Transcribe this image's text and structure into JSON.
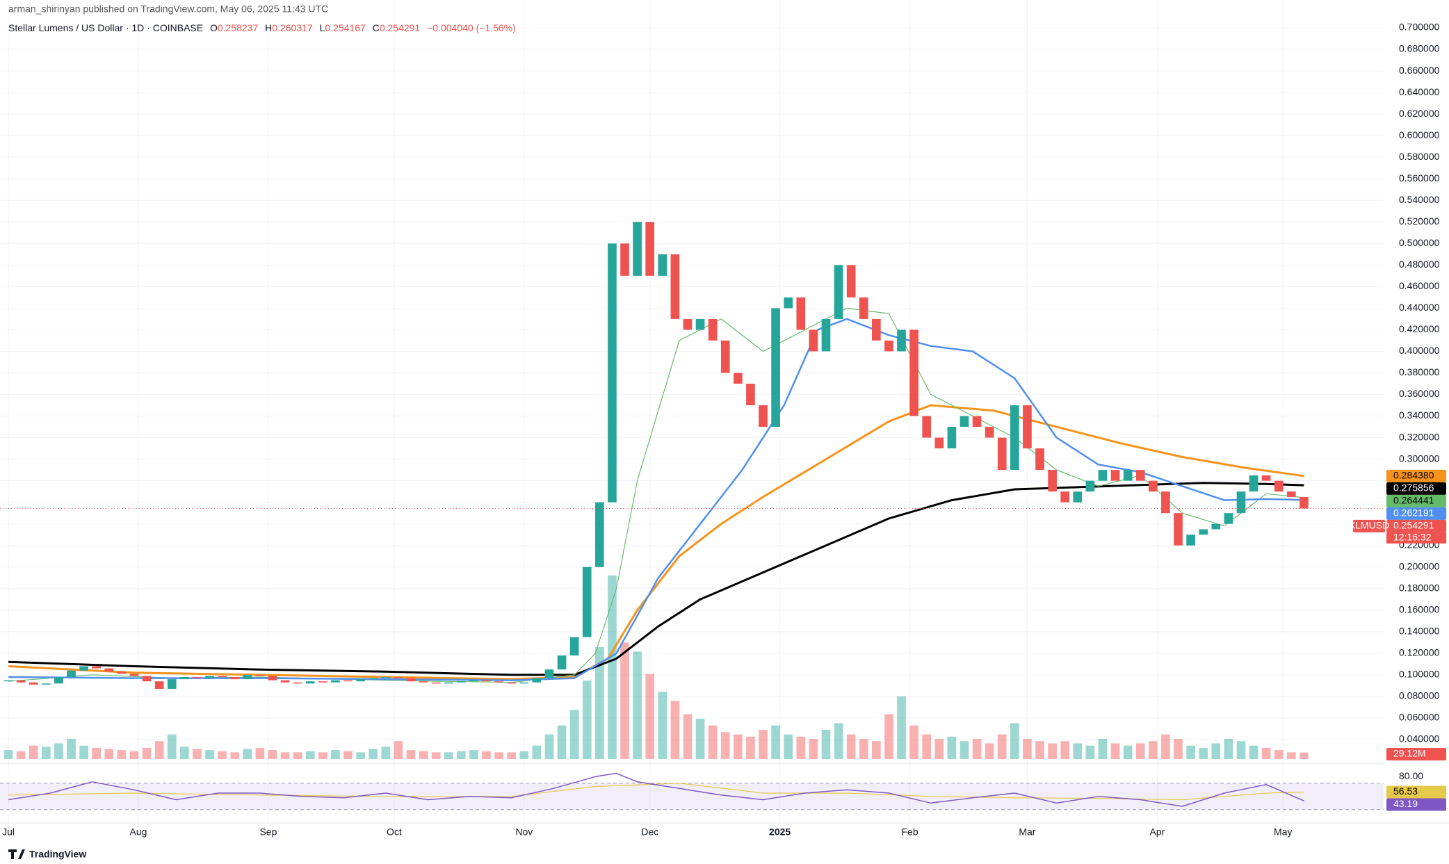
{
  "header": {
    "published": "arman_shirinyan published on TradingView.com, May 06, 2025 11:43 UTC",
    "symbol": "Stellar Lumens / US Dollar · 1D · COINBASE",
    "ohlc": [
      {
        "key": "O",
        "value": "0.258237"
      },
      {
        "key": "H",
        "value": "0.260317"
      },
      {
        "key": "L",
        "value": "0.254167"
      },
      {
        "key": "C",
        "value": "0.254291"
      }
    ],
    "change": "−0.004040 (−1.56%)"
  },
  "footer": "TradingView",
  "chart_data": {
    "type": "candlestick",
    "up_color": "#26a69a",
    "down_color": "#ef5350",
    "grid": true,
    "xlim": [
      -2,
      328
    ],
    "xticks": [
      {
        "value": 0,
        "label": "Jul"
      },
      {
        "value": 31,
        "label": "Aug"
      },
      {
        "value": 62,
        "label": "Sep"
      },
      {
        "value": 92,
        "label": "Oct"
      },
      {
        "value": 123,
        "label": "Nov"
      },
      {
        "value": 153,
        "label": "Dec"
      },
      {
        "value": 184,
        "label": "2025"
      },
      {
        "value": 215,
        "label": "Feb"
      },
      {
        "value": 243,
        "label": "Mar"
      },
      {
        "value": 274,
        "label": "Apr"
      },
      {
        "value": 304,
        "label": "May"
      }
    ],
    "ylim": [
      0.04,
      0.7
    ],
    "yticks": [
      {
        "value": 0.7,
        "label": "0.700000"
      },
      {
        "value": 0.68,
        "label": "0.680000"
      },
      {
        "value": 0.66,
        "label": "0.660000"
      },
      {
        "value": 0.64,
        "label": "0.640000"
      },
      {
        "value": 0.62,
        "label": "0.620000"
      },
      {
        "value": 0.6,
        "label": "0.600000"
      },
      {
        "value": 0.58,
        "label": "0.580000"
      },
      {
        "value": 0.56,
        "label": "0.560000"
      },
      {
        "value": 0.54,
        "label": "0.540000"
      },
      {
        "value": 0.52,
        "label": "0.520000"
      },
      {
        "value": 0.5,
        "label": "0.500000"
      },
      {
        "value": 0.48,
        "label": "0.480000"
      },
      {
        "value": 0.46,
        "label": "0.460000"
      },
      {
        "value": 0.44,
        "label": "0.440000"
      },
      {
        "value": 0.42,
        "label": "0.420000"
      },
      {
        "value": 0.4,
        "label": "0.400000"
      },
      {
        "value": 0.38,
        "label": "0.380000"
      },
      {
        "value": 0.36,
        "label": "0.360000"
      },
      {
        "value": 0.34,
        "label": "0.340000"
      },
      {
        "value": 0.32,
        "label": "0.320000"
      },
      {
        "value": 0.3,
        "label": "0.300000"
      },
      {
        "value": 0.28,
        "label": "0.280000"
      },
      {
        "value": 0.26,
        "label": "0.260000"
      },
      {
        "value": 0.24,
        "label": "0.240000"
      },
      {
        "value": 0.22,
        "label": "0.220000"
      },
      {
        "value": 0.2,
        "label": "0.200000"
      },
      {
        "value": 0.18,
        "label": "0.180000"
      },
      {
        "value": 0.16,
        "label": "0.160000"
      },
      {
        "value": 0.14,
        "label": "0.140000"
      },
      {
        "value": 0.12,
        "label": "0.120000"
      },
      {
        "value": 0.1,
        "label": "0.100000"
      },
      {
        "value": 0.08,
        "label": "0.080000"
      },
      {
        "value": 0.06,
        "label": "0.060000"
      },
      {
        "value": 0.04,
        "label": "0.040000"
      }
    ],
    "x": [
      0,
      3,
      6,
      9,
      12,
      15,
      18,
      21,
      24,
      27,
      30,
      33,
      36,
      39,
      42,
      45,
      48,
      51,
      54,
      57,
      60,
      63,
      66,
      69,
      72,
      75,
      78,
      81,
      84,
      87,
      90,
      93,
      96,
      99,
      102,
      105,
      108,
      111,
      114,
      117,
      120,
      123,
      126,
      129,
      132,
      135,
      138,
      141,
      144,
      147,
      150,
      153,
      156,
      159,
      162,
      165,
      168,
      171,
      174,
      177,
      180,
      183,
      186,
      189,
      192,
      195,
      198,
      201,
      204,
      207,
      210,
      213,
      216,
      219,
      222,
      225,
      228,
      231,
      234,
      237,
      240,
      243,
      246,
      249,
      252,
      255,
      258,
      261,
      264,
      267,
      270,
      273,
      276,
      279,
      282,
      285,
      288,
      291,
      294,
      297,
      300,
      303,
      306,
      309
    ],
    "close": [
      0.095,
      0.093,
      0.091,
      0.092,
      0.098,
      0.104,
      0.108,
      0.106,
      0.103,
      0.101,
      0.099,
      0.094,
      0.087,
      0.096,
      0.098,
      0.097,
      0.099,
      0.098,
      0.096,
      0.1,
      0.099,
      0.095,
      0.093,
      0.092,
      0.094,
      0.093,
      0.095,
      0.094,
      0.096,
      0.097,
      0.098,
      0.097,
      0.094,
      0.093,
      0.092,
      0.093,
      0.094,
      0.095,
      0.094,
      0.093,
      0.092,
      0.093,
      0.097,
      0.105,
      0.118,
      0.135,
      0.2,
      0.26,
      0.5,
      0.47,
      0.52,
      0.47,
      0.49,
      0.43,
      0.42,
      0.43,
      0.41,
      0.38,
      0.37,
      0.35,
      0.33,
      0.44,
      0.45,
      0.42,
      0.4,
      0.43,
      0.48,
      0.45,
      0.43,
      0.41,
      0.4,
      0.42,
      0.34,
      0.32,
      0.31,
      0.33,
      0.34,
      0.33,
      0.32,
      0.29,
      0.35,
      0.31,
      0.29,
      0.27,
      0.26,
      0.27,
      0.28,
      0.29,
      0.28,
      0.29,
      0.28,
      0.27,
      0.25,
      0.22,
      0.23,
      0.235,
      0.24,
      0.25,
      0.27,
      0.285,
      0.28,
      0.27,
      0.265,
      0.254291
    ],
    "last_symbol": "XLMUSD",
    "countdown": "12:16:32",
    "volume": [
      40,
      35,
      60,
      55,
      70,
      90,
      60,
      50,
      45,
      40,
      35,
      50,
      80,
      110,
      55,
      45,
      40,
      35,
      30,
      45,
      50,
      40,
      30,
      30,
      35,
      30,
      40,
      35,
      30,
      45,
      55,
      80,
      40,
      35,
      30,
      30,
      35,
      40,
      35,
      30,
      30,
      35,
      60,
      110,
      150,
      220,
      350,
      500,
      820,
      520,
      480,
      380,
      300,
      260,
      200,
      180,
      150,
      120,
      110,
      100,
      130,
      150,
      110,
      100,
      90,
      130,
      160,
      110,
      90,
      80,
      200,
      280,
      150,
      110,
      90,
      100,
      80,
      90,
      70,
      110,
      160,
      90,
      80,
      70,
      80,
      70,
      60,
      90,
      70,
      60,
      70,
      80,
      110,
      90,
      60,
      50,
      70,
      90,
      80,
      60,
      50,
      40,
      30,
      29.12
    ],
    "volume_last_label": "29.12M",
    "volume_ylim": [
      0,
      900
    ],
    "moving_averages": [
      {
        "color": "#f7931a",
        "width": 3,
        "value_label": "0.284380",
        "x": [
          0,
          30,
          60,
          90,
          120,
          135,
          143,
          150,
          160,
          170,
          180,
          195,
          210,
          220,
          235,
          250,
          265,
          280,
          295,
          309
        ],
        "values": [
          0.108,
          0.102,
          0.1,
          0.098,
          0.096,
          0.098,
          0.115,
          0.16,
          0.21,
          0.24,
          0.265,
          0.3,
          0.335,
          0.35,
          0.345,
          0.33,
          0.315,
          0.302,
          0.292,
          0.28438
        ]
      },
      {
        "color": "#000000",
        "width": 3,
        "value_label": "0.275856",
        "x": [
          0,
          30,
          60,
          90,
          120,
          135,
          145,
          155,
          165,
          180,
          195,
          210,
          225,
          240,
          255,
          270,
          285,
          300,
          309
        ],
        "values": [
          0.112,
          0.108,
          0.105,
          0.103,
          0.1,
          0.1,
          0.115,
          0.145,
          0.17,
          0.195,
          0.22,
          0.245,
          0.262,
          0.272,
          0.274,
          0.276,
          0.278,
          0.277,
          0.275856
        ]
      },
      {
        "color": "#66bb6a",
        "width": 1.2,
        "value_label": "0.264441",
        "x": [
          0,
          20,
          40,
          60,
          90,
          120,
          135,
          140,
          145,
          150,
          160,
          170,
          180,
          190,
          200,
          210,
          220,
          230,
          240,
          250,
          260,
          270,
          280,
          290,
          300,
          309
        ],
        "values": [
          0.094,
          0.1,
          0.097,
          0.098,
          0.095,
          0.093,
          0.1,
          0.12,
          0.18,
          0.28,
          0.41,
          0.43,
          0.4,
          0.42,
          0.44,
          0.435,
          0.36,
          0.34,
          0.32,
          0.29,
          0.275,
          0.285,
          0.25,
          0.238,
          0.268,
          0.264441
        ]
      },
      {
        "color": "#4f8ff0",
        "width": 2.5,
        "value_label": "0.262191",
        "x": [
          0,
          30,
          60,
          90,
          120,
          135,
          145,
          155,
          165,
          175,
          185,
          193,
          200,
          210,
          220,
          230,
          240,
          250,
          260,
          270,
          280,
          290,
          300,
          309
        ],
        "values": [
          0.098,
          0.097,
          0.097,
          0.096,
          0.095,
          0.097,
          0.12,
          0.19,
          0.24,
          0.29,
          0.35,
          0.42,
          0.43,
          0.415,
          0.405,
          0.4,
          0.375,
          0.32,
          0.295,
          0.288,
          0.275,
          0.262,
          0.263,
          0.262191
        ]
      }
    ],
    "rsi": {
      "color": "#7e57c2",
      "ylim": [
        15,
        95
      ],
      "band": [
        30,
        70
      ],
      "yticks": [
        {
          "value": 80,
          "label": "80.00"
        }
      ],
      "x": [
        0,
        10,
        20,
        30,
        40,
        50,
        60,
        70,
        80,
        90,
        100,
        110,
        120,
        130,
        140,
        145,
        150,
        160,
        170,
        180,
        190,
        200,
        210,
        220,
        230,
        240,
        250,
        260,
        270,
        280,
        290,
        300,
        309
      ],
      "values": [
        45,
        55,
        72,
        60,
        45,
        55,
        55,
        50,
        48,
        55,
        45,
        50,
        48,
        62,
        80,
        85,
        72,
        62,
        52,
        45,
        55,
        60,
        55,
        40,
        48,
        55,
        40,
        50,
        45,
        35,
        55,
        68,
        43.19
      ],
      "ma_color": "#e6c84a",
      "ma_x": [
        0,
        30,
        60,
        90,
        120,
        140,
        160,
        180,
        200,
        220,
        240,
        260,
        280,
        300,
        309
      ],
      "ma_values": [
        52,
        55,
        52,
        50,
        50,
        65,
        70,
        55,
        55,
        50,
        48,
        47,
        45,
        55,
        56.53
      ]
    }
  }
}
